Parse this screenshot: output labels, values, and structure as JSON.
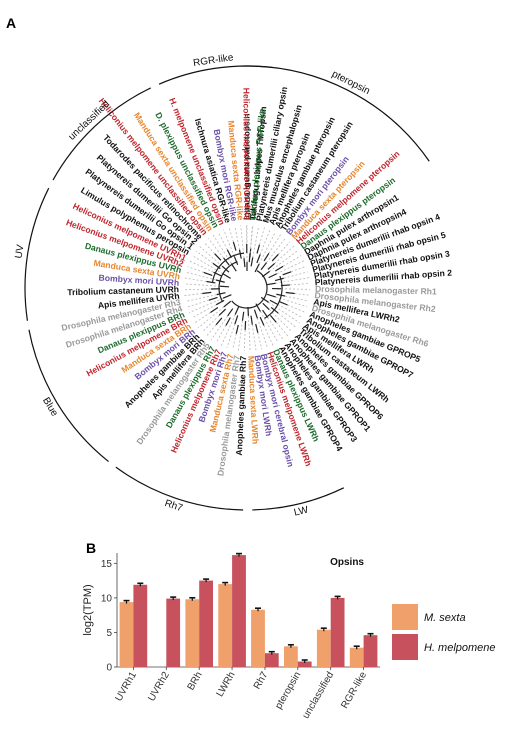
{
  "panel_a": {
    "label": "A",
    "leaves": [
      {
        "name": "Iguana iguana parietopsin",
        "color": "#111111"
      },
      {
        "name": "Takifugu rubripes TMTopsin",
        "color": "#111111"
      },
      {
        "name": "Platynereis dumerilii ciliary opsin",
        "color": "#111111"
      },
      {
        "name": "Mus musculus encephalopsin",
        "color": "#111111"
      },
      {
        "name": "Apis mellifera pteropsin",
        "color": "#111111"
      },
      {
        "name": "Anopheles gambiae pteropsin",
        "color": "#111111"
      },
      {
        "name": "Tribolium castaneum pteropsin",
        "color": "#111111"
      },
      {
        "name": "Bombyx mori pteropsin",
        "color": "#6a4fa8"
      },
      {
        "name": "Manduca sexta pteropsin",
        "color": "#e8862e"
      },
      {
        "name": "Heliconius melpomene pteropsin",
        "color": "#c0262d"
      },
      {
        "name": "Danaus plexippus pteropsin",
        "color": "#1d6b2c"
      },
      {
        "name": "Daphnia pulex arthropsin1",
        "color": "#111111"
      },
      {
        "name": "Daphnia pulex arthropsin4",
        "color": "#111111"
      },
      {
        "name": "Platynereis dumerilii rhab opsin 4",
        "color": "#111111"
      },
      {
        "name": "Platynereis dumerilii rhab opsin 5",
        "color": "#111111"
      },
      {
        "name": "Platynereis dumerilii rhab opsin 3",
        "color": "#111111"
      },
      {
        "name": "Platynereis dumerilii rhab opsin 2",
        "color": "#111111"
      },
      {
        "name": "Drosophila melanogaster Rh1",
        "color": "#9a9a9a"
      },
      {
        "name": "Drosophila melanogaster Rh2",
        "color": "#9a9a9a"
      },
      {
        "name": "Apis mellifera LWRh2",
        "color": "#111111"
      },
      {
        "name": "Drosophila melanogaster Rh6",
        "color": "#9a9a9a"
      },
      {
        "name": "Anopheles gambiae GPROP5",
        "color": "#111111"
      },
      {
        "name": "Anopheles gambiae GPROP7",
        "color": "#111111"
      },
      {
        "name": "Apis mellifera LWRh",
        "color": "#111111"
      },
      {
        "name": "Tribolium castaneum LWRh",
        "color": "#111111"
      },
      {
        "name": "Anopheles gambiae GPROP6",
        "color": "#111111"
      },
      {
        "name": "Anopheles gambiae GPROP1",
        "color": "#111111"
      },
      {
        "name": "Anopheles gambiae GPROP3",
        "color": "#111111"
      },
      {
        "name": "Anopheles gambiae GPROP4",
        "color": "#111111"
      },
      {
        "name": "Danaus plexippus LWRh",
        "color": "#1d6b2c"
      },
      {
        "name": "Heliconius melpomene LWRh",
        "color": "#c0262d"
      },
      {
        "name": "Bombyx mori cerebral opsin",
        "color": "#6a4fa8"
      },
      {
        "name": "Bombyx mori LWRh",
        "color": "#6a4fa8"
      },
      {
        "name": "Manduca sexta LWRh",
        "color": "#e8862e"
      },
      {
        "name": "Anopheles gambiae Rh7",
        "color": "#111111"
      },
      {
        "name": "Drosophila melanogaster Rh7",
        "color": "#9a9a9a"
      },
      {
        "name": "Manduca sexta Rh7",
        "color": "#e8862e"
      },
      {
        "name": "Bombyx mori Rh7",
        "color": "#6a4fa8"
      },
      {
        "name": "Heliconius melpomene Rh7",
        "color": "#c0262d"
      },
      {
        "name": "Danaus plexippus Rh7",
        "color": "#1d6b2c"
      },
      {
        "name": "Drosophila melanogaster Rh5",
        "color": "#9a9a9a"
      },
      {
        "name": "Apis mellifera BRh",
        "color": "#111111"
      },
      {
        "name": "Anopheles gambiae BRh",
        "color": "#111111"
      },
      {
        "name": "Bombyx mori BRh",
        "color": "#6a4fa8"
      },
      {
        "name": "Manduca sexta BRh",
        "color": "#e8862e"
      },
      {
        "name": "Heliconius melpomene BRh",
        "color": "#c0262d"
      },
      {
        "name": "Danaus plexippus BRh",
        "color": "#1d6b2c"
      },
      {
        "name": "Drosophila melanogaster Rh4",
        "color": "#9a9a9a"
      },
      {
        "name": "Drosophila melanogaster Rh3",
        "color": "#9a9a9a"
      },
      {
        "name": "Apis mellifera UVRh",
        "color": "#111111"
      },
      {
        "name": "Tribolium castaneum UVRh",
        "color": "#111111"
      },
      {
        "name": "Bombyx mori UVRh",
        "color": "#6a4fa8"
      },
      {
        "name": "Manduca sexta UVRh",
        "color": "#e8862e"
      },
      {
        "name": "Danaus plexippus UVRh",
        "color": "#1d6b2c"
      },
      {
        "name": "Heliconius melpomene UVRh2",
        "color": "#c0262d"
      },
      {
        "name": "Heliconius melpomene UVRh1",
        "color": "#c0262d"
      },
      {
        "name": "Limulus polyphemus peropsin",
        "color": "#111111"
      },
      {
        "name": "Platynereis dumerilii Go opsin 1",
        "color": "#111111"
      },
      {
        "name": "Platynereis dumerilii Go opsin 2",
        "color": "#111111"
      },
      {
        "name": "Todarodes pacificus retinochrome",
        "color": "#111111"
      },
      {
        "name": "Heliconius melpomene unclassified opsin",
        "color": "#c0262d"
      },
      {
        "name": "Manduca sexta unclassified opsin",
        "color": "#e8862e"
      },
      {
        "name": "D. plexippus unclassified opsin",
        "color": "#1d6b2c"
      },
      {
        "name": "H. melpomene unclassified opsin",
        "color": "#c0262d"
      },
      {
        "name": "Ischnura asiatica RGR-like",
        "color": "#111111"
      },
      {
        "name": "Bombyx mori RGR-like",
        "color": "#6a4fa8"
      },
      {
        "name": "Manduca sexta RGR-like",
        "color": "#e8862e"
      },
      {
        "name": "Heliconius melpomene RGR-like",
        "color": "#c0262d"
      },
      {
        "name": "Danaus plexippus RGR-like",
        "color": "#1d6b2c"
      }
    ],
    "clades": [
      {
        "label": "RGR-like"
      },
      {
        "label": "unclassified"
      },
      {
        "label": "pteropsin"
      },
      {
        "label": "UV"
      },
      {
        "label": "Blue"
      },
      {
        "label": "Rh7"
      },
      {
        "label": "LW"
      }
    ]
  },
  "panel_b": {
    "label": "B",
    "colors": {
      "m_sexta": "#f0a06b",
      "h_melpomene": "#c7525d"
    },
    "chart_data": {
      "type": "bar",
      "title": "Opsins",
      "xlabel": "",
      "ylabel": "log2(TPM)",
      "ylim": [
        0,
        16.5
      ],
      "yticks": [
        "0",
        "5",
        "10",
        "15"
      ],
      "grid": false,
      "legend_position": "right",
      "categories": [
        "UVRh1",
        "UVRh2",
        "BRh",
        "LWRh",
        "Rh7",
        "pteropsin",
        "unclassified",
        "RGR-like"
      ],
      "series": [
        {
          "name": "M. sexta",
          "values": [
            9.4,
            0,
            9.8,
            12.0,
            8.3,
            3.0,
            5.4,
            2.8
          ]
        },
        {
          "name": "H. melpomene",
          "values": [
            11.9,
            9.9,
            12.5,
            16.2,
            2.0,
            0.8,
            10.0,
            4.6
          ]
        }
      ]
    }
  }
}
